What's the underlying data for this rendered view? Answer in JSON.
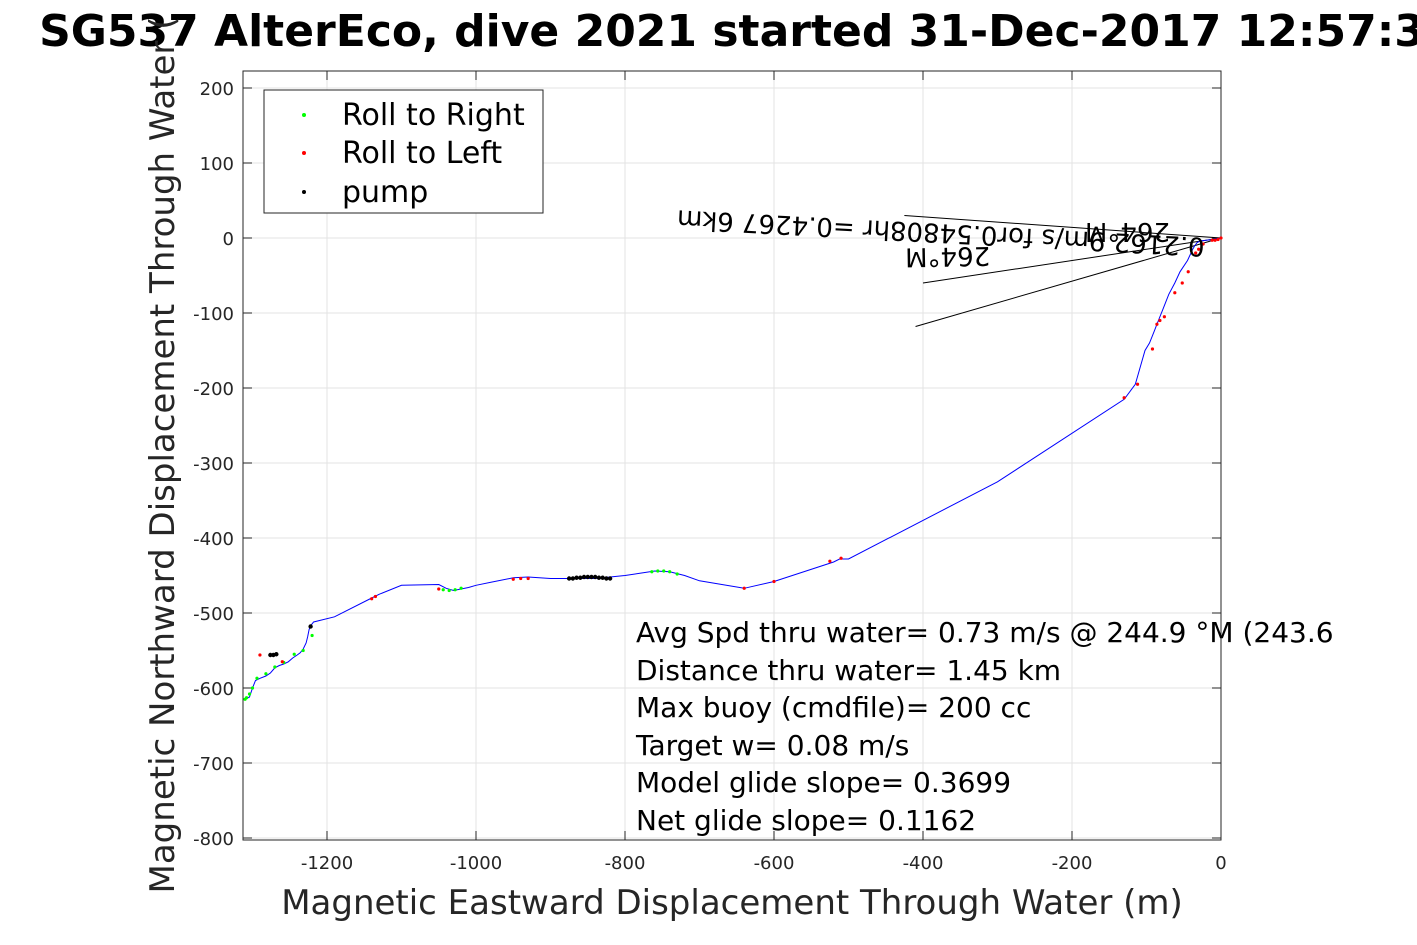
{
  "chart_data": {
    "type": "line",
    "title": "SG537 AlterEco, dive 2021 started 31-Dec-2017 12:57:3",
    "xlabel": "Magnetic Eastward Displacement Through Water (m)",
    "ylabel": "Magnetic Northward Displacement Through Water (",
    "xlim": [
      -1310,
      0
    ],
    "ylim": [
      -810,
      222
    ],
    "xticks": [
      -1200,
      -1000,
      -800,
      -600,
      -400,
      -200,
      0
    ],
    "yticks": [
      200,
      100,
      0,
      -100,
      -200,
      -300,
      -400,
      -500,
      -600,
      -700,
      -800
    ],
    "grid": true,
    "legend_position": "top-left",
    "legend": [
      {
        "label": "Roll to Right",
        "color": "#00ff00"
      },
      {
        "label": "Roll to Left",
        "color": "#ff0000"
      },
      {
        "label": "pump",
        "color": "#000000"
      }
    ],
    "track": {
      "color": "#0000ff",
      "x": [
        0,
        -6,
        -12,
        -20,
        -28,
        -32,
        -35,
        -38,
        -45,
        -55,
        -62,
        -70,
        -78,
        -84,
        -90,
        -96,
        -102,
        -115,
        -130,
        -300,
        -500,
        -512,
        -520,
        -600,
        -640,
        -700,
        -720,
        -740,
        -760,
        -780,
        -800,
        -820,
        -840,
        -870,
        -900,
        -930,
        -950,
        -980,
        -1000,
        -1010,
        -1030,
        -1040,
        -1050,
        -1100,
        -1130,
        -1140,
        -1190,
        -1218,
        -1222,
        -1224,
        -1226,
        -1228,
        -1232,
        -1236,
        -1240,
        -1246,
        -1252,
        -1258,
        -1264,
        -1270,
        -1276,
        -1282,
        -1290,
        -1296,
        -1300,
        -1304,
        -1310
      ],
      "y": [
        0,
        -1,
        -2,
        -3,
        -4,
        -6,
        -10,
        -15,
        -30,
        -45,
        -60,
        -75,
        -95,
        -110,
        -125,
        -140,
        -150,
        -195,
        -215,
        -325,
        -428,
        -428,
        -432,
        -458,
        -467,
        -457,
        -450,
        -445,
        -444,
        -447,
        -450,
        -452,
        -454,
        -454,
        -454,
        -452,
        -453,
        -459,
        -463,
        -466,
        -470,
        -467,
        -462,
        -463,
        -475,
        -480,
        -505,
        -512,
        -517,
        -522,
        -532,
        -540,
        -548,
        -553,
        -556,
        -560,
        -565,
        -568,
        -570,
        -573,
        -580,
        -584,
        -587,
        -590,
        -600,
        -612,
        -615
      ]
    },
    "roll_right": {
      "color": "#00ff00",
      "x": [
        -740,
        -748,
        -756,
        -764,
        -730,
        -1020,
        -1028,
        -1036,
        -1044,
        -1220,
        -1232,
        -1244,
        -1258,
        -1270,
        -1282,
        -1294,
        -1300,
        -1304,
        -1308,
        -1310
      ],
      "y": [
        -445,
        -444,
        -444,
        -445,
        -448,
        -467,
        -469,
        -470,
        -469,
        -530,
        -550,
        -555,
        -566,
        -572,
        -581,
        -587,
        -600,
        -608,
        -613,
        -615
      ]
    },
    "roll_left": {
      "color": "#ff0000",
      "x": [
        0,
        -4,
        -8,
        -12,
        -24,
        -30,
        -34,
        -44,
        -52,
        -62,
        -76,
        -82,
        -86,
        -92,
        -112,
        -130,
        -510,
        -525,
        -600,
        -640,
        -930,
        -940,
        -950,
        -1050,
        -1135,
        -1140,
        -1260,
        -1290
      ],
      "y": [
        0,
        -2,
        -3,
        -3,
        -8,
        -15,
        -20,
        -45,
        -60,
        -73,
        -105,
        -110,
        -115,
        -148,
        -195,
        -213,
        -427,
        -431,
        -458,
        -467,
        -454,
        -454,
        -455,
        -468,
        -478,
        -481,
        -565,
        -556
      ],
      "note": "approximate marker positions"
    },
    "pump": {
      "color": "#000000",
      "x": [
        -820,
        -825,
        -830,
        -835,
        -840,
        -845,
        -850,
        -855,
        -860,
        -865,
        -870,
        -875,
        -1222,
        -1268,
        -1272,
        -1276
      ],
      "y": [
        -454,
        -454,
        -453,
        -453,
        -452,
        -452,
        -452,
        -452,
        -453,
        -453,
        -454,
        -454,
        -518,
        -555,
        -556,
        -556
      ]
    },
    "annotation_lines": [
      {
        "from": [
          0,
          0
        ],
        "to": [
          -425,
          30
        ]
      },
      {
        "from": [
          0,
          0
        ],
        "to": [
          -410,
          -118
        ]
      },
      {
        "from": [
          0,
          0
        ],
        "to": [
          -400,
          -60
        ]
      }
    ],
    "rotated_labels": [
      "0.2162 9m/s for0.54808hr =0.4267 6km",
      "264°M",
      "264°M"
    ],
    "annotations": [
      "Avg Spd thru water=  0.73 m/s @ 244.9 °M (243.6",
      "Distance thru water=  1.45 km",
      "Max buoy (cmdfile)= 200 cc",
      "Target w= 0.08 m/s",
      "Model glide slope= 0.3699",
      "Net glide slope= 0.1162"
    ]
  }
}
